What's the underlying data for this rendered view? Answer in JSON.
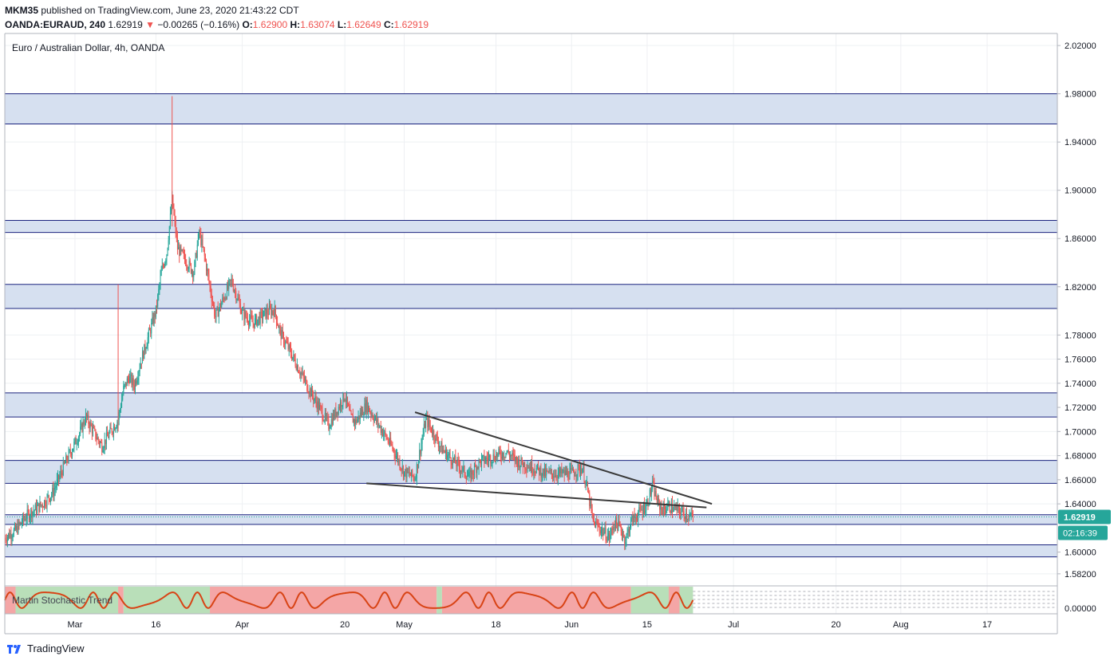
{
  "header": {
    "line1_user": "MKM35",
    "line1_rest": " published on TradingView.com, June 23, 2020 21:43:22 CDT",
    "symbol": "OANDA:EURAUD, 240",
    "last": "1.62919",
    "arrow": "▼",
    "change": "−0.00265 (−0.16%)",
    "o_label": "O:",
    "o_value": "1.62900",
    "h_label": "H:",
    "h_value": "1.63074",
    "l_label": "L:",
    "l_value": "1.62649",
    "c_label": "C:",
    "c_value": "1.62919"
  },
  "legend_title": "Euro / Australian Dollar, 4h, OANDA",
  "indicator_label": "Martin Stochastic Trend",
  "footer": {
    "brand": "TradingView",
    "logo_icon": "tradingview-logo-icon"
  },
  "colors": {
    "zone_fill": "#d6e0f0",
    "zone_border": "#1a237e",
    "bull": "#26a69a",
    "bear": "#ef5350",
    "price_badge": "#26a69a",
    "stoch_line": "#d84315",
    "stoch_bg_red": "#f4a6a6",
    "stoch_bg_green": "#b9dfb9"
  },
  "chart_data": {
    "type": "candlestick",
    "price_axis": {
      "min": 1.572,
      "max": 2.03,
      "ticks": [
        "2.02000",
        "1.98000",
        "1.94000",
        "1.90000",
        "1.86000",
        "1.82000",
        "1.78000",
        "1.76000",
        "1.74000",
        "1.72000",
        "1.70000",
        "1.68000",
        "1.66000",
        "1.64000",
        "1.60000",
        "1.58200"
      ],
      "tick_values": [
        2.02,
        1.98,
        1.94,
        1.9,
        1.86,
        1.82,
        1.78,
        1.76,
        1.74,
        1.72,
        1.7,
        1.68,
        1.66,
        1.64,
        1.6,
        1.582
      ]
    },
    "indicator_axis": {
      "ticks": [
        "0.00000"
      ]
    },
    "current_price": "1.62919",
    "countdown": "02:16:39",
    "time_axis": {
      "labels": [
        "Mar",
        "16",
        "Apr",
        "20",
        "May",
        "18",
        "Jun",
        "15",
        "Jul",
        "20",
        "Aug",
        "17"
      ],
      "dates": [
        "2020-03-01",
        "2020-03-16",
        "2020-04-01",
        "2020-04-20",
        "2020-05-01",
        "2020-05-18",
        "2020-06-01",
        "2020-06-15",
        "2020-07-01",
        "2020-07-20",
        "2020-08-01",
        "2020-08-17"
      ]
    },
    "price_path": [
      [
        "2020-02-17",
        1.612
      ],
      [
        "2020-02-19",
        1.618
      ],
      [
        "2020-02-21",
        1.63
      ],
      [
        "2020-02-24",
        1.64
      ],
      [
        "2020-02-26",
        1.65
      ],
      [
        "2020-02-28",
        1.672
      ],
      [
        "2020-03-02",
        1.7
      ],
      [
        "2020-03-03",
        1.712
      ],
      [
        "2020-03-05",
        1.695
      ],
      [
        "2020-03-06",
        1.688
      ],
      [
        "2020-03-09",
        1.71
      ],
      [
        "2020-03-10",
        1.735
      ],
      [
        "2020-03-11",
        1.745
      ],
      [
        "2020-03-12",
        1.738
      ],
      [
        "2020-03-13",
        1.755
      ],
      [
        "2020-03-16",
        1.8
      ],
      [
        "2020-03-17",
        1.832
      ],
      [
        "2020-03-18",
        1.848
      ],
      [
        "2020-03-19",
        1.892
      ],
      [
        "2020-03-20",
        1.852
      ],
      [
        "2020-03-23",
        1.832
      ],
      [
        "2020-03-24",
        1.865
      ],
      [
        "2020-03-25",
        1.845
      ],
      [
        "2020-03-26",
        1.82
      ],
      [
        "2020-03-27",
        1.795
      ],
      [
        "2020-03-30",
        1.825
      ],
      [
        "2020-03-31",
        1.812
      ],
      [
        "2020-04-01",
        1.798
      ],
      [
        "2020-04-03",
        1.79
      ],
      [
        "2020-04-06",
        1.8
      ],
      [
        "2020-04-07",
        1.8
      ],
      [
        "2020-04-08",
        1.782
      ],
      [
        "2020-04-10",
        1.765
      ],
      [
        "2020-04-13",
        1.738
      ],
      [
        "2020-04-15",
        1.722
      ],
      [
        "2020-04-17",
        1.705
      ],
      [
        "2020-04-20",
        1.73
      ],
      [
        "2020-04-21",
        1.712
      ],
      [
        "2020-04-22",
        1.708
      ],
      [
        "2020-04-24",
        1.722
      ],
      [
        "2020-04-27",
        1.7
      ],
      [
        "2020-04-29",
        1.685
      ],
      [
        "2020-05-01",
        1.666
      ],
      [
        "2020-05-03",
        1.662
      ],
      [
        "2020-05-05",
        1.71
      ],
      [
        "2020-05-06",
        1.702
      ],
      [
        "2020-05-08",
        1.685
      ],
      [
        "2020-05-11",
        1.672
      ],
      [
        "2020-05-13",
        1.662
      ],
      [
        "2020-05-15",
        1.675
      ],
      [
        "2020-05-18",
        1.68
      ],
      [
        "2020-05-20",
        1.683
      ],
      [
        "2020-05-22",
        1.675
      ],
      [
        "2020-05-25",
        1.67
      ],
      [
        "2020-05-27",
        1.665
      ],
      [
        "2020-05-29",
        1.665
      ],
      [
        "2020-06-01",
        1.665
      ],
      [
        "2020-06-02",
        1.668
      ],
      [
        "2020-06-03",
        1.67
      ],
      [
        "2020-06-04",
        1.65
      ],
      [
        "2020-06-05",
        1.625
      ],
      [
        "2020-06-08",
        1.612
      ],
      [
        "2020-06-09",
        1.625
      ],
      [
        "2020-06-10",
        1.62
      ],
      [
        "2020-06-11",
        1.61
      ],
      [
        "2020-06-12",
        1.625
      ],
      [
        "2020-06-15",
        1.64
      ],
      [
        "2020-06-16",
        1.655
      ],
      [
        "2020-06-17",
        1.64
      ],
      [
        "2020-06-18",
        1.635
      ],
      [
        "2020-06-19",
        1.638
      ],
      [
        "2020-06-22",
        1.632
      ],
      [
        "2020-06-23",
        1.629
      ]
    ],
    "spike_wicks": [
      {
        "date": "2020-03-09",
        "high": 1.822,
        "low": 1.7
      },
      {
        "date": "2020-03-19",
        "high": 1.978,
        "low": 1.87
      }
    ],
    "zones": [
      {
        "top": 1.98,
        "bottom": 1.955
      },
      {
        "top": 1.875,
        "bottom": 1.865
      },
      {
        "top": 1.822,
        "bottom": 1.802
      },
      {
        "top": 1.732,
        "bottom": 1.712
      },
      {
        "top": 1.676,
        "bottom": 1.657
      },
      {
        "top": 1.631,
        "bottom": 1.623
      },
      {
        "top": 1.606,
        "bottom": 1.596
      }
    ],
    "trendlines": [
      {
        "from": [
          "2020-05-03",
          1.716
        ],
        "to": [
          "2020-06-27",
          1.64
        ]
      },
      {
        "from": [
          "2020-04-24",
          1.657
        ],
        "to": [
          "2020-06-26",
          1.637
        ]
      }
    ]
  }
}
